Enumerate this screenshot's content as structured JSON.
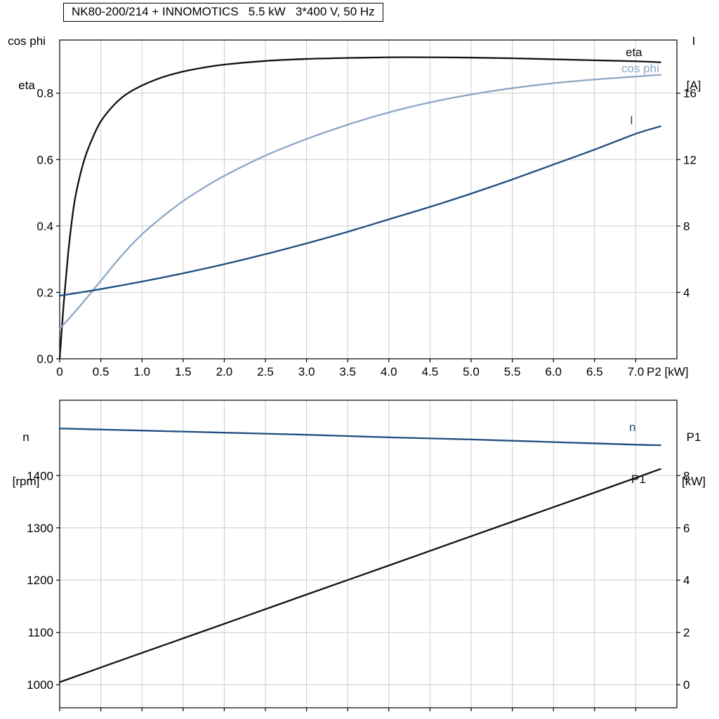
{
  "header": {
    "title": "NK80-200/214 + INNOMOTICS   5.5 kW   3*400 V, 50 Hz"
  },
  "chart_data": [
    {
      "type": "line",
      "title": "NK80-200/214 + INNOMOTICS   5.5 kW   3*400 V, 50 Hz",
      "x_label": "P2 [kW]",
      "x_range": [
        0,
        7.5
      ],
      "x_tick_values": [
        0,
        0.5,
        1,
        1.5,
        2,
        2.5,
        3,
        3.5,
        4,
        4.5,
        5,
        5.5,
        6,
        6.5,
        7
      ],
      "x_tick_labels": [
        "0",
        "0.5",
        "1.0",
        "1.5",
        "2.0",
        "2.5",
        "3.0",
        "3.5",
        "4.0",
        "4.5",
        "5.0",
        "5.5",
        "6.0",
        "6.5",
        "7.0"
      ],
      "grid": true,
      "legend_position": "inline-labels",
      "left_axis": {
        "corner_lines": [
          "cos phi",
          "eta"
        ],
        "range": [
          0,
          0.96
        ],
        "tick_values": [
          0,
          0.2,
          0.4,
          0.6,
          0.8
        ],
        "tick_labels": [
          "0.0",
          "0.2",
          "0.4",
          "0.6",
          "0.8"
        ]
      },
      "right_axis": {
        "corner_lines": [
          "I",
          "[A]"
        ],
        "range": [
          0,
          19.2
        ],
        "tick_values": [
          4,
          8,
          12,
          16
        ],
        "tick_labels": [
          "4",
          "8",
          "12",
          "16"
        ]
      },
      "series": [
        {
          "name": "eta",
          "axis": "left",
          "color": "#111111",
          "points": [
            [
              0,
              0
            ],
            [
              0.05,
              0.17
            ],
            [
              0.1,
              0.31
            ],
            [
              0.15,
              0.42
            ],
            [
              0.2,
              0.5
            ],
            [
              0.3,
              0.6
            ],
            [
              0.4,
              0.665
            ],
            [
              0.5,
              0.715
            ],
            [
              0.65,
              0.762
            ],
            [
              0.8,
              0.795
            ],
            [
              1,
              0.823
            ],
            [
              1.25,
              0.848
            ],
            [
              1.5,
              0.865
            ],
            [
              1.75,
              0.877
            ],
            [
              2,
              0.886
            ],
            [
              2.5,
              0.897
            ],
            [
              3,
              0.903
            ],
            [
              3.5,
              0.906
            ],
            [
              4,
              0.908
            ],
            [
              4.5,
              0.908
            ],
            [
              5,
              0.907
            ],
            [
              5.5,
              0.905
            ],
            [
              6,
              0.902
            ],
            [
              6.5,
              0.899
            ],
            [
              7,
              0.896
            ],
            [
              7.3,
              0.893
            ]
          ]
        },
        {
          "name": "cos phi",
          "axis": "left",
          "color": "#8ca6c5",
          "points": [
            [
              0,
              0.09
            ],
            [
              0.25,
              0.16
            ],
            [
              0.5,
              0.235
            ],
            [
              0.75,
              0.31
            ],
            [
              1,
              0.375
            ],
            [
              1.25,
              0.428
            ],
            [
              1.5,
              0.475
            ],
            [
              1.75,
              0.515
            ],
            [
              2,
              0.551
            ],
            [
              2.5,
              0.612
            ],
            [
              3,
              0.662
            ],
            [
              3.5,
              0.705
            ],
            [
              4,
              0.742
            ],
            [
              4.5,
              0.772
            ],
            [
              5,
              0.796
            ],
            [
              5.5,
              0.815
            ],
            [
              6,
              0.83
            ],
            [
              6.5,
              0.841
            ],
            [
              7,
              0.85
            ],
            [
              7.3,
              0.855
            ]
          ]
        },
        {
          "name": "I",
          "axis": "right",
          "color": "#1d4e7e",
          "points": [
            [
              0,
              3.8
            ],
            [
              0.5,
              4.2
            ],
            [
              1,
              4.65
            ],
            [
              1.5,
              5.15
            ],
            [
              2,
              5.7
            ],
            [
              2.5,
              6.3
            ],
            [
              3,
              6.95
            ],
            [
              3.5,
              7.65
            ],
            [
              4,
              8.4
            ],
            [
              4.5,
              9.15
            ],
            [
              5,
              9.95
            ],
            [
              5.5,
              10.8
            ],
            [
              6,
              11.7
            ],
            [
              6.5,
              12.6
            ],
            [
              7,
              13.55
            ],
            [
              7.3,
              14
            ]
          ]
        }
      ]
    },
    {
      "type": "line",
      "title": "",
      "x_label": "",
      "x_range": [
        0,
        7.5
      ],
      "x_tick_values": [
        0,
        0.5,
        1,
        1.5,
        2,
        2.5,
        3,
        3.5,
        4,
        4.5,
        5,
        5.5,
        6,
        6.5,
        7
      ],
      "x_tick_labels": [],
      "grid": true,
      "legend_position": "inline-labels",
      "left_axis": {
        "corner_lines": [
          "n",
          "[rpm]"
        ],
        "range": [
          956,
          1544
        ],
        "tick_values": [
          1000,
          1100,
          1200,
          1300,
          1400
        ],
        "tick_labels": [
          "1000",
          "1100",
          "1200",
          "1300",
          "1400"
        ]
      },
      "right_axis": {
        "corner_lines": [
          "P1",
          "[kW]"
        ],
        "range": [
          -0.88,
          10.88
        ],
        "tick_values": [
          0,
          2,
          4,
          6,
          8
        ],
        "tick_labels": [
          "0",
          "2",
          "4",
          "6",
          "8"
        ]
      },
      "series": [
        {
          "name": "n",
          "axis": "left",
          "color": "#1d4e7e",
          "points": [
            [
              0,
              1490
            ],
            [
              1,
              1486
            ],
            [
              2,
              1482
            ],
            [
              3,
              1478
            ],
            [
              4,
              1473
            ],
            [
              5,
              1469
            ],
            [
              6,
              1464
            ],
            [
              7,
              1459
            ],
            [
              7.3,
              1458
            ]
          ]
        },
        {
          "name": "P1",
          "axis": "right",
          "color": "#111111",
          "points": [
            [
              0,
              0.1
            ],
            [
              1,
              1.22
            ],
            [
              2,
              2.33
            ],
            [
              3,
              3.45
            ],
            [
              4,
              4.56
            ],
            [
              5,
              5.68
            ],
            [
              6,
              6.79
            ],
            [
              7,
              7.91
            ],
            [
              7.3,
              8.25
            ]
          ]
        }
      ]
    }
  ]
}
